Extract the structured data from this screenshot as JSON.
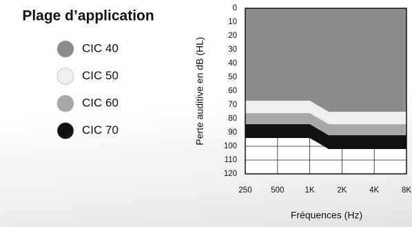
{
  "chart_data": {
    "type": "area",
    "title": "Plage d’application",
    "y_label": "Perte auditive en dB (HL)",
    "x_label": "Fréquences (Hz)",
    "log_x": true,
    "y_inverted": true,
    "grid": true,
    "x": [
      250,
      1000,
      1500,
      8000
    ],
    "xlim": [
      250,
      8000
    ],
    "xticks": [
      250,
      500,
      {
        "value": 1000,
        "label": "1K"
      },
      {
        "value": 2000,
        "label": "2K"
      },
      {
        "value": 4000,
        "label": "4K"
      },
      {
        "value": 8000,
        "label": "8K"
      }
    ],
    "ylim": [
      0,
      120
    ],
    "yticks": [
      0,
      10,
      20,
      30,
      40,
      50,
      60,
      70,
      80,
      90,
      100,
      110,
      120
    ],
    "series": [
      {
        "name": "CIC 40",
        "color": "#8c8c8c",
        "values": [
          67,
          67,
          75,
          75
        ]
      },
      {
        "name": "CIC 50",
        "color": "#eeeeee",
        "values": [
          76,
          76,
          84,
          84
        ]
      },
      {
        "name": "CIC 60",
        "color": "#a9a9a9",
        "values": [
          84,
          84,
          92,
          92
        ]
      },
      {
        "name": "CIC 70",
        "color": "#111111",
        "values": [
          94,
          94,
          102,
          102
        ]
      }
    ]
  }
}
